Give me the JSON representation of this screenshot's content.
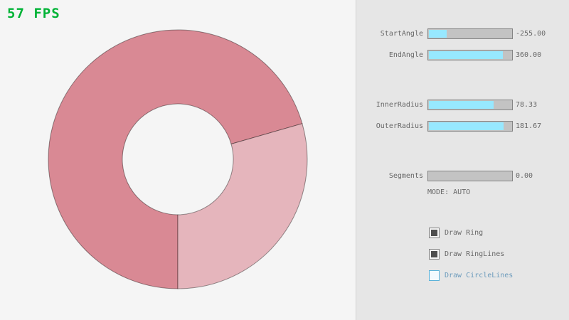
{
  "fps": {
    "text": "57 FPS",
    "color": "#00b336"
  },
  "panel": {
    "sliders": [
      {
        "label": "StartAngle",
        "value": "-255.00",
        "fill_pct": 21.7
      },
      {
        "label": "EndAngle",
        "value": "360.00",
        "fill_pct": 90.0
      },
      {
        "label": "InnerRadius",
        "value": "78.33",
        "fill_pct": 78.3
      },
      {
        "label": "OuterRadius",
        "value": "181.67",
        "fill_pct": 90.8
      },
      {
        "label": "Segments",
        "value": "0.00",
        "fill_pct": 0.0
      }
    ],
    "mode_text": "MODE: AUTO",
    "checkboxes": [
      {
        "label": "Draw Ring",
        "checked": true,
        "state": "checked"
      },
      {
        "label": "Draw RingLines",
        "checked": true,
        "state": "checked"
      },
      {
        "label": "Draw CircleLines",
        "checked": false,
        "state": "focused"
      }
    ],
    "accent_color": "#97e8ff",
    "focus_color": "#5bb2d9"
  },
  "ring": {
    "segments": [
      {
        "name": "ring-overlap-segment",
        "color": "#d98994",
        "sweep_deg": 254
      },
      {
        "name": "ring-single-segment",
        "color": "#e5b5bc",
        "sweep_deg": 106
      }
    ],
    "outline_color": "rgba(0,0,0,0.4)"
  }
}
